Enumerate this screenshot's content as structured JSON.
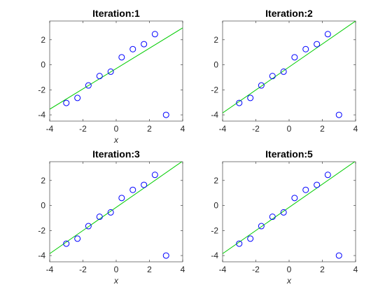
{
  "chart_data": [
    {
      "type": "scatter",
      "title": "Iteration:1",
      "xlabel": "x",
      "ylabel": "",
      "xlim": [
        -4,
        4
      ],
      "ylim": [
        -4.5,
        3.5
      ],
      "xticks": [
        -4,
        -2,
        0,
        2,
        4
      ],
      "yticks": [
        -4,
        -2,
        0,
        2
      ],
      "grid": false,
      "series": [
        {
          "kind": "points",
          "color": "#0000ff",
          "x": [
            -3.0,
            -2.33,
            -1.67,
            -1.0,
            -0.33,
            0.33,
            1.0,
            1.67,
            2.33,
            3.0
          ],
          "y": [
            -3.05,
            -2.65,
            -1.65,
            -0.9,
            -0.55,
            0.6,
            1.25,
            1.65,
            2.45,
            -4.0
          ]
        },
        {
          "kind": "line",
          "color": "#00cc00",
          "x": [
            -4,
            4
          ],
          "y": [
            -3.55,
            2.95
          ]
        }
      ]
    },
    {
      "type": "scatter",
      "title": "Iteration:2",
      "xlabel": "",
      "ylabel": "",
      "xlim": [
        -4,
        4
      ],
      "ylim": [
        -4.5,
        3.5
      ],
      "xticks": [
        -4,
        -2,
        0,
        2,
        4
      ],
      "yticks": [
        -4,
        -2,
        0,
        2
      ],
      "grid": false,
      "series": [
        {
          "kind": "points",
          "color": "#0000ff",
          "x": [
            -3.0,
            -2.33,
            -1.67,
            -1.0,
            -0.33,
            0.33,
            1.0,
            1.67,
            2.33,
            3.0
          ],
          "y": [
            -3.05,
            -2.65,
            -1.65,
            -0.9,
            -0.55,
            0.6,
            1.25,
            1.65,
            2.45,
            -4.0
          ]
        },
        {
          "kind": "line",
          "color": "#00cc00",
          "x": [
            -4,
            4
          ],
          "y": [
            -3.85,
            3.5
          ]
        }
      ]
    },
    {
      "type": "scatter",
      "title": "Iteration:3",
      "xlabel": "x",
      "ylabel": "",
      "xlim": [
        -4,
        4
      ],
      "ylim": [
        -4.5,
        3.5
      ],
      "xticks": [
        -4,
        -2,
        0,
        2,
        4
      ],
      "yticks": [
        -4,
        -2,
        0,
        2
      ],
      "grid": false,
      "series": [
        {
          "kind": "points",
          "color": "#0000ff",
          "x": [
            -3.0,
            -2.33,
            -1.67,
            -1.0,
            -0.33,
            0.33,
            1.0,
            1.67,
            2.33,
            3.0
          ],
          "y": [
            -3.05,
            -2.65,
            -1.65,
            -0.9,
            -0.55,
            0.6,
            1.25,
            1.65,
            2.45,
            -4.0
          ]
        },
        {
          "kind": "line",
          "color": "#00cc00",
          "x": [
            -4,
            4
          ],
          "y": [
            -3.85,
            3.55
          ]
        }
      ]
    },
    {
      "type": "scatter",
      "title": "Iteration:5",
      "xlabel": "x",
      "ylabel": "",
      "xlim": [
        -4,
        4
      ],
      "ylim": [
        -4.5,
        3.5
      ],
      "xticks": [
        -4,
        -2,
        0,
        2,
        4
      ],
      "yticks": [
        -4,
        -2,
        0,
        2
      ],
      "grid": false,
      "series": [
        {
          "kind": "points",
          "color": "#0000ff",
          "x": [
            -3.0,
            -2.33,
            -1.67,
            -1.0,
            -0.33,
            0.33,
            1.0,
            1.67,
            2.33,
            3.0
          ],
          "y": [
            -3.05,
            -2.65,
            -1.65,
            -0.9,
            -0.55,
            0.6,
            1.25,
            1.65,
            2.45,
            -4.0
          ]
        },
        {
          "kind": "line",
          "color": "#00cc00",
          "x": [
            -4,
            4
          ],
          "y": [
            -3.85,
            3.55
          ]
        }
      ]
    }
  ]
}
